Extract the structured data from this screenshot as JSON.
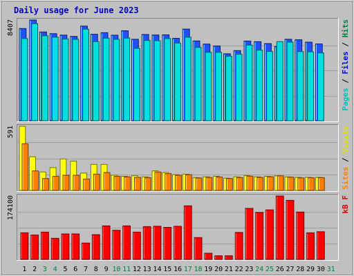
{
  "chart_data": {
    "type": "bar",
    "title": "Daily usage for June 2023",
    "days": [
      "1",
      "2",
      "3",
      "4",
      "5",
      "6",
      "7",
      "8",
      "9",
      "10",
      "11",
      "12",
      "13",
      "14",
      "15",
      "16",
      "17",
      "18",
      "19",
      "20",
      "21",
      "22",
      "23",
      "24",
      "25",
      "26",
      "27",
      "28",
      "29",
      "30",
      "31"
    ],
    "weekend_days": [
      "3",
      "4",
      "10",
      "11",
      "17",
      "18",
      "24",
      "25",
      "31"
    ],
    "panels": [
      {
        "max_label": "8407",
        "ymax": 8407,
        "series": [
          {
            "name": "Hits",
            "color": "#00c0ff",
            "values": [
              7700,
              8407,
              7410,
              7270,
              7150,
              7040,
              7900,
              7220,
              7350,
              7140,
              7510,
              6800,
              7200,
              7160,
              7170,
              6880,
              7650,
              6660,
              6400,
              6240,
              5590,
              5850,
              6650,
              6600,
              6440,
              6200,
              6800,
              6760,
              6560,
              6410,
              null
            ]
          },
          {
            "name": "Files",
            "color": "#00e0e0",
            "values": [
              6860,
              8100,
              7090,
              6970,
              6820,
              6790,
              7640,
              6600,
              6890,
              6790,
              6900,
              6040,
              6700,
              6680,
              6860,
              6480,
              6970,
              6120,
              5710,
              5710,
              5380,
              5550,
              6310,
              5890,
              5780,
              6600,
              6560,
              5770,
              5750,
              5660,
              null
            ]
          },
          {
            "name": "Pages",
            "color": "#2050ff",
            "values": [
              7700,
              8407,
              7410,
              7270,
              7150,
              7040,
              7900,
              7220,
              7350,
              7140,
              7510,
              6800,
              7200,
              7160,
              7170,
              6880,
              7650,
              6660,
              6400,
              6240,
              5590,
              5850,
              6650,
              6600,
              6440,
              6200,
              6800,
              6760,
              6560,
              6410,
              null
            ]
          }
        ]
      },
      {
        "max_label": "591",
        "ymax": 591,
        "series": [
          {
            "name": "Visits",
            "color": "#ffff00",
            "values": [
              591,
              310,
              170,
              210,
              290,
              270,
              160,
              240,
              240,
              140,
              130,
              135,
              125,
              180,
              165,
              145,
              150,
              118,
              126,
              130,
              113,
              126,
              136,
              125,
              130,
              135,
              125,
              120,
              120,
              120,
              null
            ]
          },
          {
            "name": "Sites",
            "color": "#ff8000",
            "values": [
              430,
              180,
              110,
              130,
              140,
              140,
              105,
              150,
              165,
              130,
              125,
              120,
              118,
              170,
              155,
              140,
              145,
              115,
              120,
              124,
              110,
              118,
              132,
              120,
              126,
              135,
              122,
              116,
              117,
              118,
              null
            ]
          }
        ]
      },
      {
        "max_label": "174100",
        "ymax": 174100,
        "series": [
          {
            "name": "kB F",
            "color": "#ff0000",
            "values": [
              73000,
              67000,
              75000,
              58000,
              70000,
              70000,
              45000,
              68000,
              92000,
              80000,
              92000,
              75000,
              90000,
              91000,
              88000,
              91000,
              147000,
              60000,
              17000,
              10000,
              10000,
              74000,
              140000,
              129000,
              136000,
              174100,
              162000,
              130000,
              73000,
              76000,
              null
            ]
          }
        ]
      }
    ],
    "legend": {
      "top": [
        {
          "text": "Pages",
          "color": "#00c0c0"
        },
        {
          "text": " / ",
          "color": "#000000"
        },
        {
          "text": "Files",
          "color": "#0000ff"
        },
        {
          "text": " / ",
          "color": "#000000"
        },
        {
          "text": "Hits",
          "color": "#008040"
        }
      ],
      "middle": [
        {
          "text": "Sites",
          "color": "#ff8000"
        },
        {
          "text": " / ",
          "color": "#000000"
        },
        {
          "text": "Visits",
          "color": "#e0e000"
        }
      ],
      "bottom": [
        {
          "text": "kB F",
          "color": "#e00000"
        }
      ]
    },
    "colors": {
      "background": "#c0c0c0",
      "title": "#0000c0",
      "weekday_label": "#000000",
      "weekend_label": "#008040"
    }
  }
}
